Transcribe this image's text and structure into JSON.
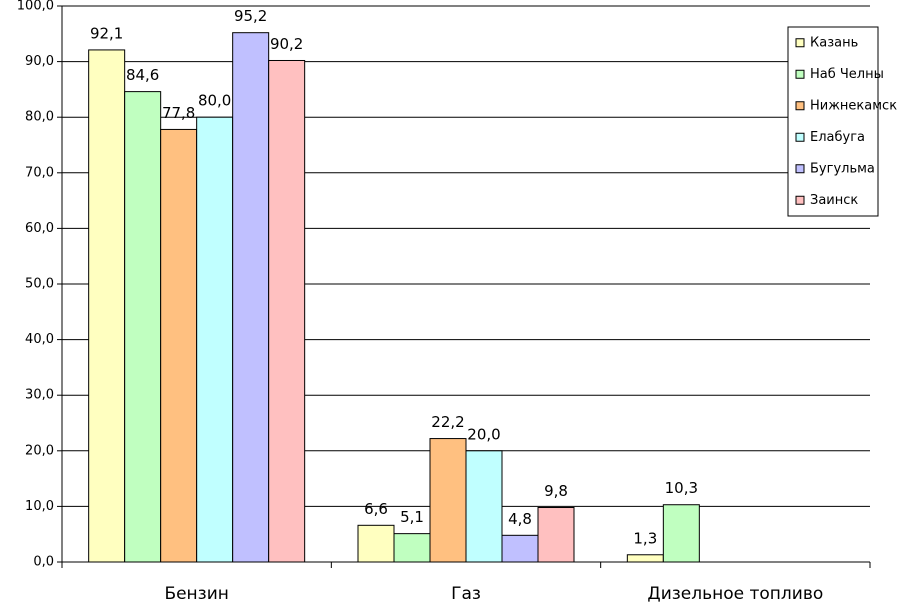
{
  "chart_data": {
    "type": "bar",
    "categories": [
      "Бензин",
      "Газ",
      "Дизельное топливо"
    ],
    "ylim": [
      0,
      100
    ],
    "yticks": [
      {
        "value": 0,
        "label": "0,0"
      },
      {
        "value": 10,
        "label": "10,0"
      },
      {
        "value": 20,
        "label": "20,0"
      },
      {
        "value": 30,
        "label": "30,0"
      },
      {
        "value": 40,
        "label": "40,0"
      },
      {
        "value": 50,
        "label": "50,0"
      },
      {
        "value": 60,
        "label": "60,0"
      },
      {
        "value": 70,
        "label": "70,0"
      },
      {
        "value": 80,
        "label": "80,0"
      },
      {
        "value": 90,
        "label": "90,0"
      },
      {
        "value": 100,
        "label": "100,0"
      }
    ],
    "grid": true,
    "legend": "right",
    "series": [
      {
        "name": "Казань",
        "color": "#ffffc0",
        "values": [
          92.1,
          6.6,
          1.3
        ],
        "value_labels": [
          "92,1",
          "6,6",
          "1,3"
        ]
      },
      {
        "name": "Наб Челны",
        "color": "#c0ffc0",
        "values": [
          84.6,
          5.1,
          10.3
        ],
        "value_labels": [
          "84,6",
          "5,1",
          "10,3"
        ]
      },
      {
        "name": "Нижнекамск",
        "color": "#ffc080",
        "values": [
          77.8,
          22.2,
          null
        ],
        "value_labels": [
          "77,8",
          "22,2",
          null
        ]
      },
      {
        "name": "Елабуга",
        "color": "#c0ffff",
        "values": [
          80.0,
          20.0,
          null
        ],
        "value_labels": [
          "80,0",
          "20,0",
          null
        ]
      },
      {
        "name": "Бугульма",
        "color": "#c0c0ff",
        "values": [
          95.2,
          4.8,
          null
        ],
        "value_labels": [
          "95,2",
          "4,8",
          null
        ]
      },
      {
        "name": "Заинск",
        "color": "#ffc0c0",
        "values": [
          90.2,
          9.8,
          null
        ],
        "value_labels": [
          "90,2",
          "9,8",
          null
        ]
      }
    ]
  }
}
